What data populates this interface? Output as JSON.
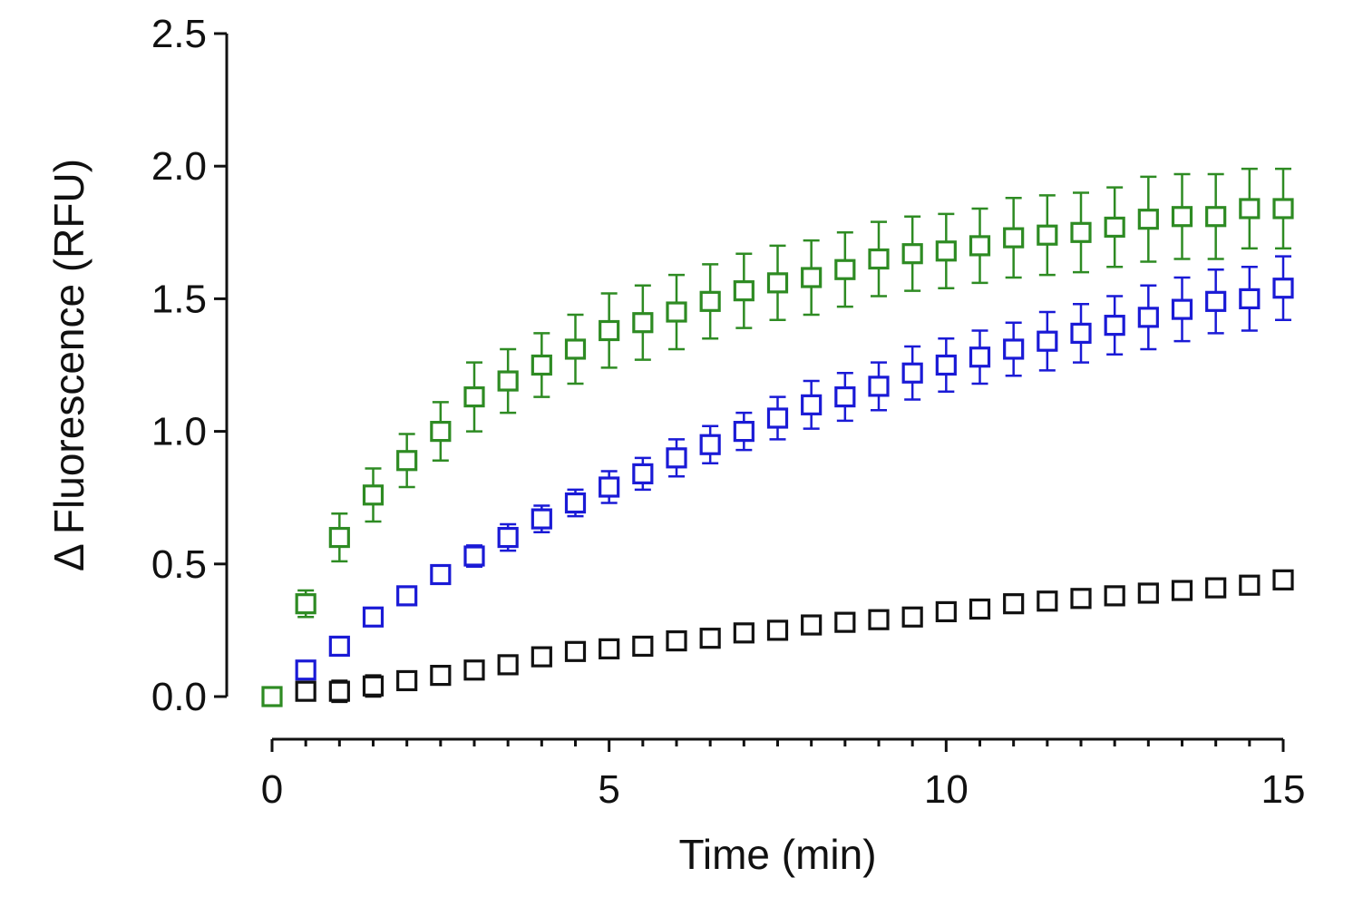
{
  "chart_data": {
    "type": "scatter",
    "title": "",
    "xlabel": "Time (min)",
    "ylabel": "Δ Fluorescence (RFU)",
    "xlim": [
      0,
      15
    ],
    "ylim": [
      0,
      2.5
    ],
    "xticks": [
      0,
      5,
      10,
      15
    ],
    "xtick_labels": [
      "0",
      "5",
      "10",
      "15"
    ],
    "yticks": [
      0,
      0.5,
      1.0,
      1.5,
      2.0,
      2.5
    ],
    "ytick_labels": [
      "0.0",
      "0.5",
      "1.0",
      "1.5",
      "2.0",
      "2.5"
    ],
    "x_minor_step": 0.5,
    "grid": false,
    "marker": "open-square",
    "error_bars": true,
    "series": [
      {
        "name": "green",
        "color": "#2e8b23",
        "x": [
          0,
          0.5,
          1,
          1.5,
          2,
          2.5,
          3,
          3.5,
          4,
          4.5,
          5,
          5.5,
          6,
          6.5,
          7,
          7.5,
          8,
          8.5,
          9,
          9.5,
          10,
          10.5,
          11,
          11.5,
          12,
          12.5,
          13,
          13.5,
          14,
          14.5,
          15
        ],
        "y": [
          0.0,
          0.35,
          0.6,
          0.76,
          0.89,
          1.0,
          1.13,
          1.19,
          1.25,
          1.31,
          1.38,
          1.41,
          1.45,
          1.49,
          1.53,
          1.56,
          1.58,
          1.61,
          1.65,
          1.67,
          1.68,
          1.7,
          1.73,
          1.74,
          1.75,
          1.77,
          1.8,
          1.81,
          1.81,
          1.84,
          1.84
        ],
        "error": [
          0.0,
          0.05,
          0.09,
          0.1,
          0.1,
          0.11,
          0.13,
          0.12,
          0.12,
          0.13,
          0.14,
          0.14,
          0.14,
          0.14,
          0.14,
          0.14,
          0.14,
          0.14,
          0.14,
          0.14,
          0.14,
          0.14,
          0.15,
          0.15,
          0.15,
          0.15,
          0.16,
          0.16,
          0.16,
          0.15,
          0.15
        ]
      },
      {
        "name": "blue",
        "color": "#1a1ad6",
        "x": [
          0.5,
          1,
          1.5,
          2,
          2.5,
          3,
          3.5,
          4,
          4.5,
          5,
          5.5,
          6,
          6.5,
          7,
          7.5,
          8,
          8.5,
          9,
          9.5,
          10,
          10.5,
          11,
          11.5,
          12,
          12.5,
          13,
          13.5,
          14,
          14.5,
          15
        ],
        "y": [
          0.1,
          0.19,
          0.3,
          0.38,
          0.46,
          0.53,
          0.6,
          0.67,
          0.73,
          0.79,
          0.84,
          0.9,
          0.95,
          1.0,
          1.05,
          1.1,
          1.13,
          1.17,
          1.22,
          1.25,
          1.28,
          1.31,
          1.34,
          1.37,
          1.4,
          1.43,
          1.46,
          1.49,
          1.5,
          1.54
        ],
        "error": [
          0.02,
          0.02,
          0.02,
          0.02,
          0.03,
          0.04,
          0.05,
          0.05,
          0.05,
          0.06,
          0.06,
          0.07,
          0.07,
          0.07,
          0.08,
          0.09,
          0.09,
          0.09,
          0.1,
          0.1,
          0.1,
          0.1,
          0.11,
          0.11,
          0.11,
          0.12,
          0.12,
          0.12,
          0.12,
          0.12
        ]
      },
      {
        "name": "black",
        "color": "#111111",
        "x": [
          0.5,
          1,
          1.5,
          2,
          2.5,
          3,
          3.5,
          4,
          4.5,
          5,
          5.5,
          6,
          6.5,
          7,
          7.5,
          8,
          8.5,
          9,
          9.5,
          10,
          10.5,
          11,
          11.5,
          12,
          12.5,
          13,
          13.5,
          14,
          14.5,
          15
        ],
        "y": [
          0.02,
          0.02,
          0.04,
          0.06,
          0.08,
          0.1,
          0.12,
          0.15,
          0.17,
          0.18,
          0.19,
          0.21,
          0.22,
          0.24,
          0.25,
          0.27,
          0.28,
          0.29,
          0.3,
          0.32,
          0.33,
          0.35,
          0.36,
          0.37,
          0.38,
          0.39,
          0.4,
          0.41,
          0.42,
          0.44
        ],
        "error": [
          0.02,
          0.04,
          0.04,
          0.03,
          0.03,
          0.03,
          0.03,
          0.03,
          0.03,
          0.03,
          0.03,
          0.03,
          0.03,
          0.02,
          0.02,
          0.02,
          0.02,
          0.02,
          0.02,
          0.02,
          0.02,
          0.02,
          0.02,
          0.02,
          0.02,
          0.02,
          0.02,
          0.02,
          0.02,
          0.02
        ]
      }
    ]
  }
}
